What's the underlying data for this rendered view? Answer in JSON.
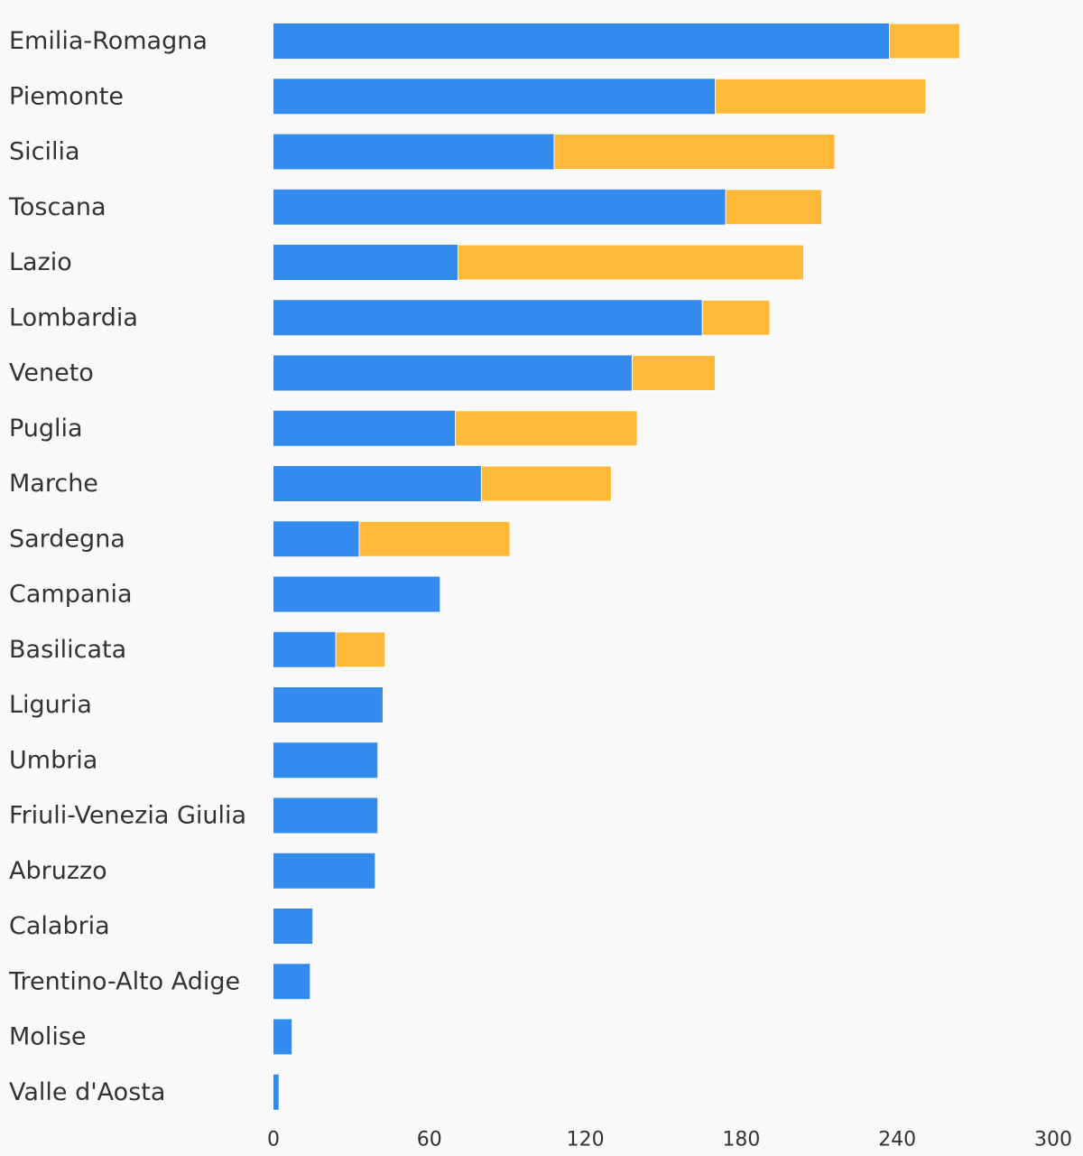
{
  "chart_data": {
    "type": "bar",
    "orientation": "horizontal",
    "stacked": true,
    "title": "",
    "xlabel": "",
    "ylabel": "",
    "xlim": [
      0,
      300
    ],
    "x_ticks": [
      0,
      60,
      120,
      180,
      240,
      300
    ],
    "grid": false,
    "legend": "none",
    "categories": [
      "Emilia-Romagna",
      "Piemonte",
      "Sicilia",
      "Toscana",
      "Lazio",
      "Lombardia",
      "Veneto",
      "Puglia",
      "Marche",
      "Sardegna",
      "Campania",
      "Basilicata",
      "Liguria",
      "Umbria",
      "Friuli-Venezia Giulia",
      "Abruzzo",
      "Calabria",
      "Trentino-Alto Adige",
      "Molise",
      "Valle d'Aosta"
    ],
    "series": [
      {
        "color": "#338ced",
        "values": [
          237,
          170,
          108,
          174,
          71,
          165,
          138,
          70,
          80,
          33,
          64,
          24,
          42,
          40,
          40,
          39,
          15,
          14,
          7,
          2
        ]
      },
      {
        "color": "#ffb938",
        "values": [
          27,
          81,
          108,
          37,
          133,
          26,
          32,
          70,
          50,
          58,
          0,
          19,
          0,
          0,
          0,
          0,
          0,
          0,
          0,
          0
        ]
      }
    ]
  }
}
